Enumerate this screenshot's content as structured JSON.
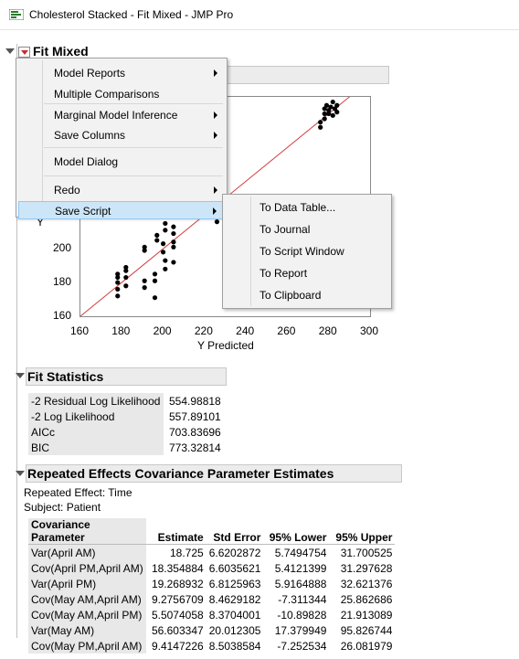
{
  "window": {
    "title": "Cholesterol Stacked - Fit Mixed - JMP Pro"
  },
  "report": {
    "title": "Fit Mixed"
  },
  "plot": {
    "x_axis_label": "Y Predicted",
    "y_axis_fragment": "Y",
    "x_ticks": [
      "160",
      "180",
      "200",
      "220",
      "240",
      "260",
      "280",
      "300"
    ],
    "y_ticks": [
      "160",
      "180",
      "200",
      "220"
    ]
  },
  "chart_data": {
    "type": "scatter",
    "xlabel": "Y Predicted",
    "ylabel": "",
    "xlim": [
      160,
      300
    ],
    "ylim": [
      160,
      290
    ],
    "reference_line": "y = x",
    "points": [
      [
        178,
        172
      ],
      [
        178,
        176
      ],
      [
        178,
        180
      ],
      [
        178,
        183
      ],
      [
        178,
        185
      ],
      [
        182,
        178
      ],
      [
        182,
        183
      ],
      [
        182,
        187
      ],
      [
        182,
        189
      ],
      [
        191,
        177
      ],
      [
        191,
        181
      ],
      [
        191,
        199
      ],
      [
        191,
        201
      ],
      [
        196,
        171
      ],
      [
        196,
        181
      ],
      [
        196,
        185
      ],
      [
        197,
        205
      ],
      [
        197,
        208
      ],
      [
        200,
        198
      ],
      [
        200,
        203
      ],
      [
        201,
        188
      ],
      [
        201,
        193
      ],
      [
        201,
        211
      ],
      [
        201,
        215
      ],
      [
        205,
        192
      ],
      [
        205,
        201
      ],
      [
        205,
        204
      ],
      [
        205,
        209
      ],
      [
        205,
        213
      ],
      [
        226,
        216
      ],
      [
        226,
        221
      ],
      [
        226,
        224
      ],
      [
        276,
        272
      ],
      [
        276,
        275
      ],
      [
        278,
        277
      ],
      [
        278,
        280
      ],
      [
        278,
        283
      ],
      [
        279,
        285
      ],
      [
        280,
        280
      ],
      [
        280,
        282
      ],
      [
        281,
        284
      ],
      [
        282,
        279
      ],
      [
        282,
        287
      ],
      [
        283,
        283
      ],
      [
        284,
        281
      ],
      [
        284,
        285
      ]
    ]
  },
  "menu": {
    "items": [
      {
        "label": "Model Reports",
        "submenu": true
      },
      {
        "label": "Multiple Comparisons",
        "submenu": false
      },
      {
        "label": "Marginal Model Inference",
        "submenu": true
      },
      {
        "label": "Save Columns",
        "submenu": true
      },
      {
        "label": "Model Dialog",
        "submenu": false
      },
      {
        "label": "Redo",
        "submenu": true
      },
      {
        "label": "Save Script",
        "submenu": true,
        "highlighted": true
      }
    ],
    "submenu_items": [
      "To Data Table...",
      "To Journal",
      "To Script Window",
      "To Report",
      "To Clipboard"
    ]
  },
  "fit_statistics": {
    "title": "Fit Statistics",
    "rows": [
      {
        "label": "-2 Residual Log Likelihood",
        "value": "554.98818"
      },
      {
        "label": "-2 Log Likelihood",
        "value": "557.89101"
      },
      {
        "label": "AICc",
        "value": "703.83696"
      },
      {
        "label": "BIC",
        "value": "773.32814"
      }
    ]
  },
  "covariance": {
    "title": "Repeated Effects Covariance Parameter Estimates",
    "repeated_effect": "Repeated Effect: Time",
    "subject": "Subject: Patient",
    "headers": [
      "Covariance Parameter",
      "Estimate",
      "Std Error",
      "95% Lower",
      "95% Upper"
    ],
    "header_first_line1": "Covariance",
    "header_first_line2": "Parameter",
    "rows": [
      [
        "Var(April AM)",
        "18.725",
        "6.6202872",
        "5.7494754",
        "31.700525"
      ],
      [
        "Cov(April PM,April AM)",
        "18.354884",
        "6.6035621",
        "5.4121399",
        "31.297628"
      ],
      [
        "Var(April PM)",
        "19.268932",
        "6.8125963",
        "5.9164888",
        "32.621376"
      ],
      [
        "Cov(May AM,April AM)",
        "9.2756709",
        "8.4629182",
        "-7.311344",
        "25.862686"
      ],
      [
        "Cov(May AM,April PM)",
        "5.5074058",
        "8.3704001",
        "-10.89828",
        "21.913089"
      ],
      [
        "Var(May AM)",
        "56.603347",
        "20.012305",
        "17.379949",
        "95.826744"
      ],
      [
        "Cov(May PM,April AM)",
        "9.4147226",
        "8.5038584",
        "-7.252534",
        "26.081979"
      ]
    ]
  }
}
